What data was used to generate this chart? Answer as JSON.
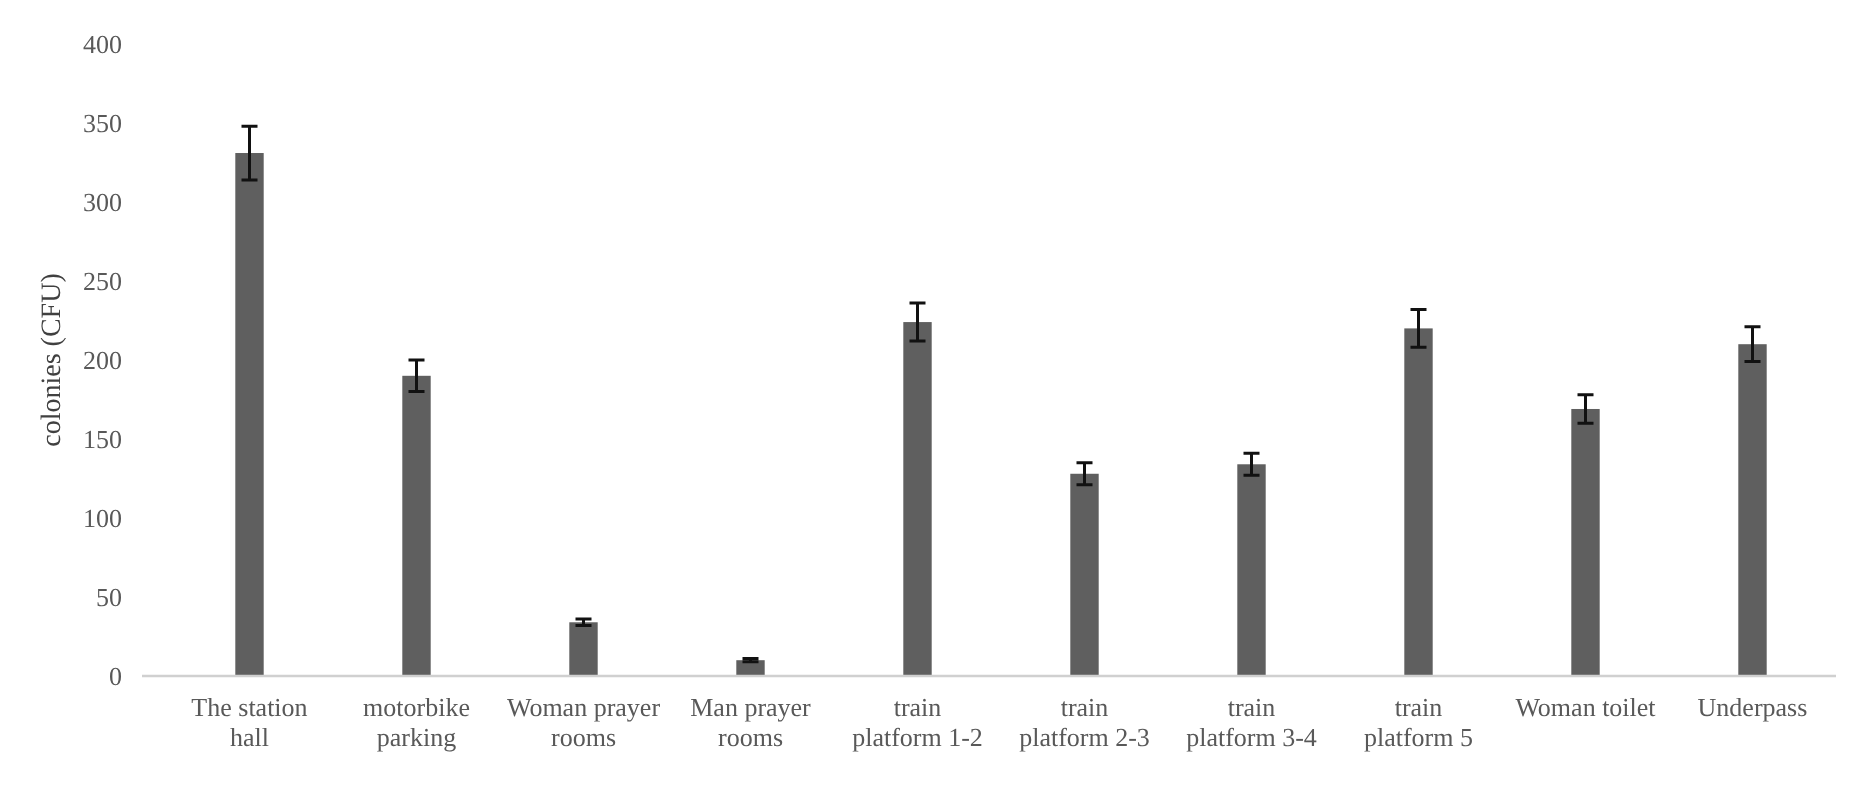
{
  "chart_data": {
    "type": "bar",
    "ylabel": "colonies (CFU)",
    "categories": [
      "The station hall",
      "motorbike parking",
      "Woman prayer rooms",
      "Man prayer rooms",
      "train platform 1-2",
      "train platform 2-3",
      "train platform 3-4",
      "train platform 5",
      "Woman toilet",
      "Underpass"
    ],
    "values": [
      331,
      190,
      34,
      10,
      224,
      128,
      134,
      220,
      169,
      210
    ],
    "errors": [
      17,
      10,
      2,
      1,
      12,
      7,
      7,
      12,
      9,
      11
    ],
    "color": "#5f5f5f",
    "ylim": [
      0,
      400
    ],
    "yticks": [
      0,
      50,
      100,
      150,
      200,
      250,
      300,
      350,
      400
    ],
    "grid": false
  }
}
